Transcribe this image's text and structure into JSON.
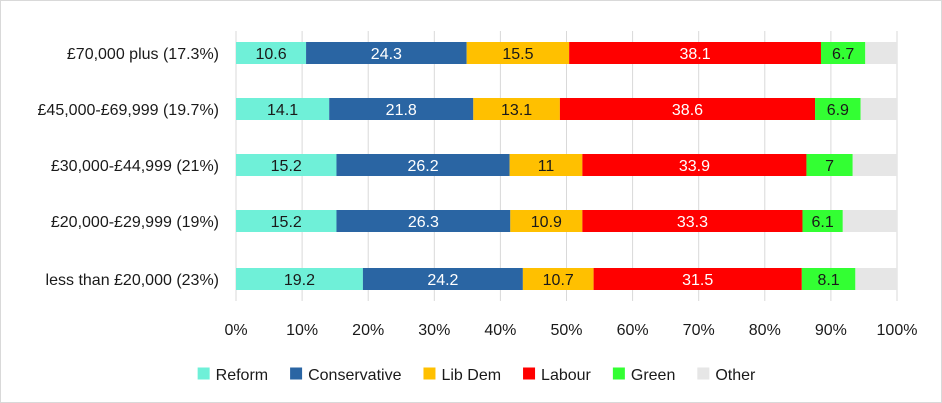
{
  "chart_data": {
    "type": "bar",
    "orientation": "horizontal",
    "stacked": true,
    "categories": [
      "£70,000 plus (17.3%)",
      "£45,000-£69,999 (19.7%)",
      "£30,000-£44,999 (21%)",
      "£20,000-£29,999 (19%)",
      "less than £20,000 (23%)"
    ],
    "series": [
      {
        "name": "Reform",
        "color": "#6ff0d8",
        "label_color": "#1a1a1a",
        "values": [
          10.6,
          14.1,
          15.2,
          15.2,
          19.2
        ],
        "labels": [
          "10.6",
          "14.1",
          "15.2",
          "15.2",
          "19.2"
        ]
      },
      {
        "name": "Conservative",
        "color": "#2a65a3",
        "label_color": "#ffffff",
        "values": [
          24.3,
          21.8,
          26.2,
          26.3,
          24.2
        ],
        "labels": [
          "24.3",
          "21.8",
          "26.2",
          "26.3",
          "24.2"
        ]
      },
      {
        "name": "Lib Dem",
        "color": "#ffc000",
        "label_color": "#1a1a1a",
        "values": [
          15.5,
          13.1,
          11,
          10.9,
          10.7
        ],
        "labels": [
          "15.5",
          "13.1",
          "11",
          "10.9",
          "10.7"
        ]
      },
      {
        "name": "Labour",
        "color": "#ff0000",
        "label_color": "#ffffff",
        "values": [
          38.1,
          38.6,
          33.9,
          33.3,
          31.5
        ],
        "labels": [
          "38.1",
          "38.6",
          "33.9",
          "33.3",
          "31.5"
        ]
      },
      {
        "name": "Green",
        "color": "#33ff33",
        "label_color": "#1a1a1a",
        "values": [
          6.7,
          6.9,
          7,
          6.1,
          8.1
        ],
        "labels": [
          "6.7",
          "6.9",
          "7",
          "6.1",
          "8.1"
        ]
      },
      {
        "name": "Other",
        "color": "#e6e6e6",
        "label_color": "#1a1a1a",
        "values": [
          4.8,
          5.5,
          6.7,
          8.2,
          6.3
        ],
        "labels": null
      }
    ],
    "x_ticks": [
      "0%",
      "10%",
      "20%",
      "30%",
      "40%",
      "50%",
      "60%",
      "70%",
      "80%",
      "90%",
      "100%"
    ],
    "xlim": [
      0,
      100
    ],
    "grid": true,
    "legend_position": "bottom",
    "title": "",
    "xlabel": "",
    "ylabel": ""
  }
}
